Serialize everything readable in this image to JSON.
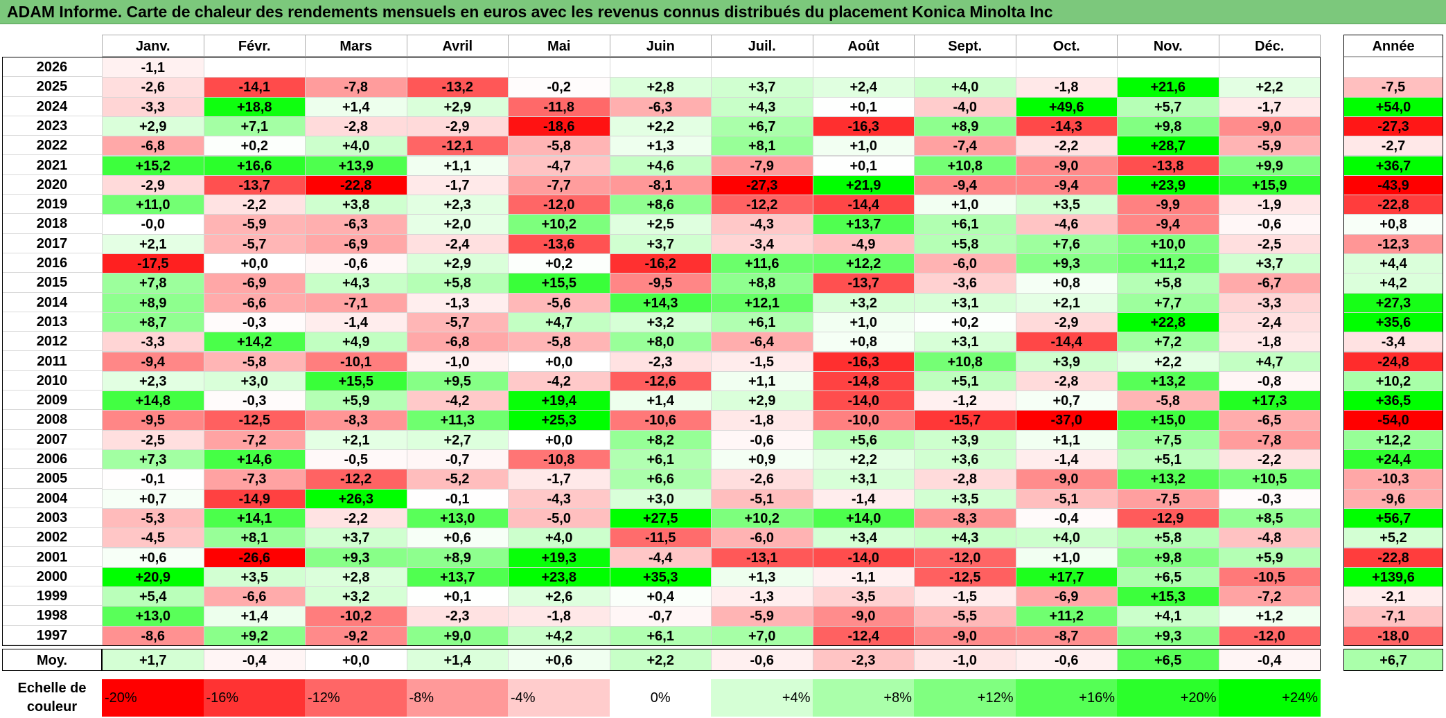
{
  "title": "ADAM Informe. Carte de chaleur des rendements mensuels en euros avec les revenus connus distribués du placement Konica Minolta Inc",
  "chart_data": {
    "type": "heatmap",
    "title": "ADAM Informe. Carte de chaleur des rendements mensuels en euros avec les revenus connus distribués du placement Konica Minolta Inc",
    "columns": [
      "Janv.",
      "Févr.",
      "Mars",
      "Avril",
      "Mai",
      "Juin",
      "Juil.",
      "Août",
      "Sept.",
      "Oct.",
      "Nov.",
      "Déc."
    ],
    "year_column": "Année",
    "rows": [
      {
        "year": "2026",
        "values": [
          "-1,1",
          "",
          "",
          "",
          "",
          "",
          "",
          "",
          "",
          "",
          "",
          ""
        ],
        "annual": ""
      },
      {
        "year": "2025",
        "values": [
          "-2,6",
          "-14,1",
          "-7,8",
          "-13,2",
          "-0,2",
          "+2,8",
          "+3,7",
          "+2,4",
          "+4,0",
          "-1,8",
          "+21,6",
          "+2,2"
        ],
        "annual": "-7,5"
      },
      {
        "year": "2024",
        "values": [
          "-3,3",
          "+18,8",
          "+1,4",
          "+2,9",
          "-11,8",
          "-6,3",
          "+4,3",
          "+0,1",
          "-4,0",
          "+49,6",
          "+5,7",
          "-1,7"
        ],
        "annual": "+54,0"
      },
      {
        "year": "2023",
        "values": [
          "+2,9",
          "+7,1",
          "-2,8",
          "-2,9",
          "-18,6",
          "+2,2",
          "+6,7",
          "-16,3",
          "+8,9",
          "-14,3",
          "+9,8",
          "-9,0"
        ],
        "annual": "-27,3"
      },
      {
        "year": "2022",
        "values": [
          "-6,8",
          "+0,2",
          "+4,0",
          "-12,1",
          "-5,8",
          "+1,3",
          "+8,1",
          "+1,0",
          "-7,4",
          "-2,2",
          "+28,7",
          "-5,9"
        ],
        "annual": "-2,7"
      },
      {
        "year": "2021",
        "values": [
          "+15,2",
          "+16,6",
          "+13,9",
          "+1,1",
          "-4,7",
          "+4,6",
          "-7,9",
          "+0,1",
          "+10,8",
          "-9,0",
          "-13,8",
          "+9,9"
        ],
        "annual": "+36,7"
      },
      {
        "year": "2020",
        "values": [
          "-2,9",
          "-13,7",
          "-22,8",
          "-1,7",
          "-7,7",
          "-8,1",
          "-27,3",
          "+21,9",
          "-9,4",
          "-9,4",
          "+23,9",
          "+15,9"
        ],
        "annual": "-43,9"
      },
      {
        "year": "2019",
        "values": [
          "+11,0",
          "-2,2",
          "+3,8",
          "+2,3",
          "-12,0",
          "+8,6",
          "-12,2",
          "-14,4",
          "+1,0",
          "+3,5",
          "-9,9",
          "-1,9"
        ],
        "annual": "-22,8"
      },
      {
        "year": "2018",
        "values": [
          "-0,0",
          "-5,9",
          "-6,3",
          "+2,0",
          "+10,2",
          "+2,5",
          "-4,3",
          "+13,7",
          "+6,1",
          "-4,6",
          "-9,4",
          "-0,6"
        ],
        "annual": "+0,8"
      },
      {
        "year": "2017",
        "values": [
          "+2,1",
          "-5,7",
          "-6,9",
          "-2,4",
          "-13,6",
          "+3,7",
          "-3,4",
          "-4,9",
          "+5,8",
          "+7,6",
          "+10,0",
          "-2,5"
        ],
        "annual": "-12,3"
      },
      {
        "year": "2016",
        "values": [
          "-17,5",
          "+0,0",
          "-0,6",
          "+2,9",
          "+0,2",
          "-16,2",
          "+11,6",
          "+12,2",
          "-6,0",
          "+9,3",
          "+11,2",
          "+3,7"
        ],
        "annual": "+4,4"
      },
      {
        "year": "2015",
        "values": [
          "+7,8",
          "-6,9",
          "+4,3",
          "+5,8",
          "+15,5",
          "-9,5",
          "+8,8",
          "-13,7",
          "-3,6",
          "+0,8",
          "+5,8",
          "-6,7"
        ],
        "annual": "+4,2"
      },
      {
        "year": "2014",
        "values": [
          "+8,9",
          "-6,6",
          "-7,1",
          "-1,3",
          "-5,6",
          "+14,3",
          "+12,1",
          "+3,2",
          "+3,1",
          "+2,1",
          "+7,7",
          "-3,3"
        ],
        "annual": "+27,3"
      },
      {
        "year": "2013",
        "values": [
          "+8,7",
          "-0,3",
          "-1,4",
          "-5,7",
          "+4,7",
          "+3,2",
          "+6,1",
          "+1,0",
          "+0,2",
          "-2,9",
          "+22,8",
          "-2,4"
        ],
        "annual": "+35,6"
      },
      {
        "year": "2012",
        "values": [
          "-3,3",
          "+14,2",
          "+4,9",
          "-6,8",
          "-5,8",
          "+8,0",
          "-6,4",
          "+0,8",
          "+3,1",
          "-14,4",
          "+7,2",
          "-1,8"
        ],
        "annual": "-3,4"
      },
      {
        "year": "2011",
        "values": [
          "-9,4",
          "-5,8",
          "-10,1",
          "-1,0",
          "+0,0",
          "-2,3",
          "-1,5",
          "-16,3",
          "+10,8",
          "+3,9",
          "+2,2",
          "+4,7"
        ],
        "annual": "-24,8"
      },
      {
        "year": "2010",
        "values": [
          "+2,3",
          "+3,0",
          "+15,5",
          "+9,5",
          "-4,2",
          "-12,6",
          "+1,1",
          "-14,8",
          "+5,1",
          "-2,8",
          "+13,2",
          "-0,8"
        ],
        "annual": "+10,2"
      },
      {
        "year": "2009",
        "values": [
          "+14,8",
          "-0,3",
          "+5,9",
          "-4,2",
          "+19,4",
          "+1,4",
          "+2,9",
          "-14,0",
          "-1,2",
          "+0,7",
          "-5,8",
          "+17,3"
        ],
        "annual": "+36,5"
      },
      {
        "year": "2008",
        "values": [
          "-9,5",
          "-12,5",
          "-8,3",
          "+11,3",
          "+25,3",
          "-10,6",
          "-1,8",
          "-10,0",
          "-15,7",
          "-37,0",
          "+15,0",
          "-6,5"
        ],
        "annual": "-54,0"
      },
      {
        "year": "2007",
        "values": [
          "-2,5",
          "-7,2",
          "+2,1",
          "+2,7",
          "+0,0",
          "+8,2",
          "-0,6",
          "+5,6",
          "+3,9",
          "+1,1",
          "+7,5",
          "-7,8"
        ],
        "annual": "+12,2"
      },
      {
        "year": "2006",
        "values": [
          "+7,3",
          "+14,6",
          "-0,5",
          "-0,7",
          "-10,8",
          "+6,1",
          "+0,9",
          "+2,2",
          "+3,6",
          "-1,4",
          "+5,1",
          "-2,2"
        ],
        "annual": "+24,4"
      },
      {
        "year": "2005",
        "values": [
          "-0,1",
          "-7,3",
          "-12,2",
          "-5,2",
          "-1,7",
          "+6,6",
          "-2,6",
          "+3,1",
          "-2,8",
          "-9,0",
          "+13,2",
          "+10,5"
        ],
        "annual": "-10,3"
      },
      {
        "year": "2004",
        "values": [
          "+0,7",
          "-14,9",
          "+26,3",
          "-0,1",
          "-4,3",
          "+3,0",
          "-5,1",
          "-1,4",
          "+3,5",
          "-5,1",
          "-7,5",
          "-0,3"
        ],
        "annual": "-9,6"
      },
      {
        "year": "2003",
        "values": [
          "-5,3",
          "+14,1",
          "-2,2",
          "+13,0",
          "-5,0",
          "+27,5",
          "+10,2",
          "+14,0",
          "-8,3",
          "-0,4",
          "-12,9",
          "+8,5"
        ],
        "annual": "+56,7"
      },
      {
        "year": "2002",
        "values": [
          "-4,5",
          "+8,1",
          "+3,7",
          "+0,6",
          "+4,0",
          "-11,5",
          "-6,0",
          "+3,4",
          "+4,3",
          "+4,0",
          "+5,8",
          "-4,8"
        ],
        "annual": "+5,2"
      },
      {
        "year": "2001",
        "values": [
          "+0,6",
          "-26,6",
          "+9,3",
          "+8,9",
          "+19,3",
          "-4,4",
          "-13,1",
          "-14,0",
          "-12,0",
          "+1,0",
          "+9,8",
          "+5,9"
        ],
        "annual": "-22,8"
      },
      {
        "year": "2000",
        "values": [
          "+20,9",
          "+3,5",
          "+2,8",
          "+13,7",
          "+23,8",
          "+35,3",
          "+1,3",
          "-1,1",
          "-12,5",
          "+17,7",
          "+6,5",
          "-10,5"
        ],
        "annual": "+139,6"
      },
      {
        "year": "1999",
        "values": [
          "+5,4",
          "-6,6",
          "+3,2",
          "+0,1",
          "+2,6",
          "+0,4",
          "-1,3",
          "-3,5",
          "-1,5",
          "-6,9",
          "+15,3",
          "-7,2"
        ],
        "annual": "-2,1"
      },
      {
        "year": "1998",
        "values": [
          "+13,0",
          "+1,4",
          "-10,2",
          "-2,3",
          "-1,8",
          "-0,7",
          "-5,9",
          "-9,0",
          "-5,5",
          "+11,2",
          "+4,1",
          "+1,2"
        ],
        "annual": "-7,1"
      },
      {
        "year": "1997",
        "values": [
          "-8,6",
          "+9,2",
          "-9,2",
          "+9,0",
          "+4,2",
          "+6,1",
          "+7,0",
          "-12,4",
          "-9,0",
          "-8,7",
          "+9,3",
          "-12,0"
        ],
        "annual": "-18,0"
      }
    ],
    "average": {
      "label": "Moy.",
      "values": [
        "+1,7",
        "-0,4",
        "+0,0",
        "+1,4",
        "+0,6",
        "+2,2",
        "-0,6",
        "-2,3",
        "-1,0",
        "-0,6",
        "+6,5",
        "-0,4"
      ],
      "annual": "+6,7"
    },
    "color_scale": {
      "label": "Echelle de couleur",
      "stops": [
        "-20%",
        "-16%",
        "-12%",
        "-8%",
        "-4%",
        "0%",
        "+4%",
        "+8%",
        "+12%",
        "+16%",
        "+20%",
        "+24%"
      ],
      "negative_color": "#ff0000",
      "neutral_color": "#ffffff",
      "positive_color": "#00ff00"
    }
  }
}
